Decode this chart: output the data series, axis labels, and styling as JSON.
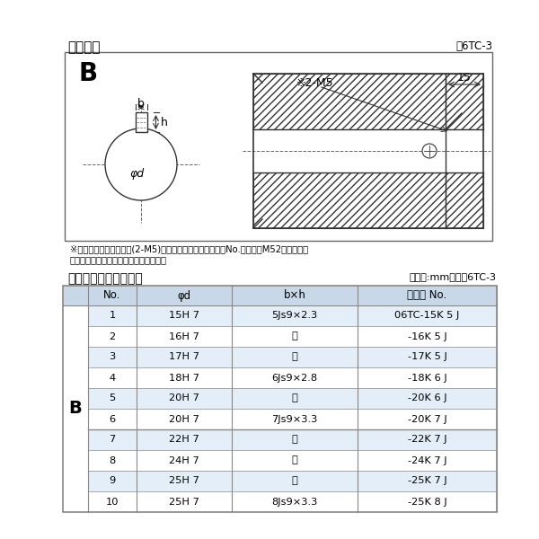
{
  "title_top": "軸穴形状",
  "fig_label": "図6TC-3",
  "diagram_note1": "※セットボルト用タップ(2-M5)が必要な場合は右記コードNo.の末尾にM52を付ける。",
  "diagram_note2": "（セットボルトは付属されています。）",
  "table_title": "軸穴形状コード一覧表",
  "table_unit": "（単位:mm）　表6TC-3",
  "table_headers": [
    "No.",
    "φd",
    "b×h",
    "コード No."
  ],
  "table_b_label": "B",
  "table_rows": [
    [
      "1",
      "15H 7",
      "5Js9×2.3",
      "06TC-15K 5 J"
    ],
    [
      "2",
      "16H 7",
      "〃",
      "-16K 5 J"
    ],
    [
      "3",
      "17H 7",
      "〃",
      "-17K 5 J"
    ],
    [
      "4",
      "18H 7",
      "6Js9×2.8",
      "-18K 6 J"
    ],
    [
      "5",
      "20H 7",
      "〃",
      "-20K 6 J"
    ],
    [
      "6",
      "20H 7",
      "7Js9×3.3",
      "-20K 7 J"
    ],
    [
      "7",
      "22H 7",
      "〃",
      "-22K 7 J"
    ],
    [
      "8",
      "24H 7",
      "〃",
      "-24K 7 J"
    ],
    [
      "9",
      "25H 7",
      "〃",
      "-25K 7 J"
    ],
    [
      "10",
      "25H 7",
      "8Js9×3.3",
      "-25K 8 J"
    ]
  ],
  "bg_color": "#ffffff",
  "table_header_bg": "#c8d8e8",
  "table_row_bg_light": "#e4eef8",
  "table_row_bg_white": "#ffffff",
  "table_border_color": "#888888",
  "text_color": "#000000",
  "hatch_color": "#777777",
  "line_color": "#333333"
}
